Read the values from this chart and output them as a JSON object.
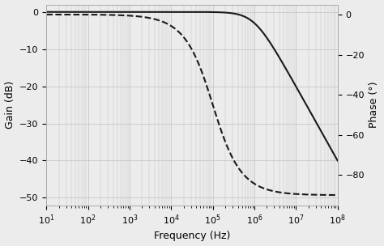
{
  "freq_min": 10,
  "freq_max": 100000000.0,
  "freq_points": 1000,
  "cutoff_gain": 1000000.0,
  "cutoff_phase": 100000.0,
  "gain_ylim": [
    -52,
    2
  ],
  "gain_yticks": [
    0,
    -10,
    -20,
    -30,
    -40,
    -50
  ],
  "phase_ylim": [
    -95,
    5
  ],
  "phase_yticks": [
    0,
    -20,
    -40,
    -60,
    -80
  ],
  "xlabel": "Frequency (Hz)",
  "ylabel_left": "Gain (dB)",
  "ylabel_right": "Phase (°)",
  "line_color": "#1a1a1a",
  "grid_color": "#c0c0c0",
  "background_color": "#ececec",
  "label_fontsize": 9,
  "tick_fontsize": 8
}
